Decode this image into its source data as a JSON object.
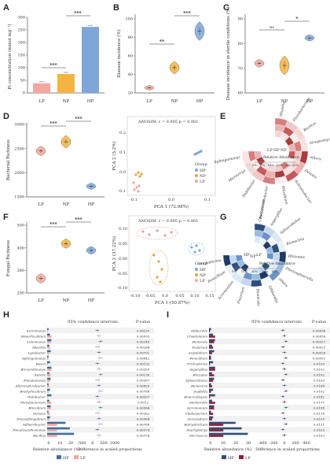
{
  "colors": {
    "LP": "#f2a7a0",
    "NP": "#f5b342",
    "HP": "#7ea6d8",
    "HP_dark": "#2f4f7a",
    "LP_dark": "#8a1e3a",
    "NP_scatter": "#e8a33d"
  },
  "panels": {
    "A": {
      "label": "A",
      "ylabel": "Pi concentration (mmol mg⁻¹)",
      "yticks": [
        "0",
        "50",
        "100",
        "150",
        "200",
        "250",
        "300"
      ],
      "categories": [
        "LP",
        "NP",
        "HP"
      ],
      "sig": [
        "***",
        "***"
      ]
    },
    "B": {
      "label": "B",
      "ylabel": "Disease incidence (%)",
      "yticks": [
        "20",
        "40",
        "60",
        "80",
        "100"
      ],
      "categories": [
        "LP",
        "NP",
        "HP"
      ],
      "sig": [
        "**",
        "***"
      ]
    },
    "C": {
      "label": "C",
      "ylabel": "Disease incidence in sterile conditions (%)",
      "yticks": [
        "60",
        "70",
        "80",
        "90"
      ],
      "categories": [
        "LP",
        "NP",
        "HP"
      ],
      "sig": [
        "ns",
        "*"
      ]
    },
    "D": {
      "label": "D",
      "ylabel": "Bacterial Richness",
      "yticks": [
        "1500",
        "2000",
        "2500",
        "3000"
      ],
      "categories": [
        "LP",
        "NP",
        "HP"
      ],
      "sig": [
        "***",
        "***"
      ]
    },
    "D2": {
      "anosim": "ANOSIM: r = 0.905 p = 0.001",
      "xlabel": "PCA 1 (72.98%)",
      "ylabel": "PCA 2 (5.2%)",
      "xticks": [
        "-0.1",
        "0.0",
        "0.1"
      ],
      "yticks": [
        "0.2",
        "0.1",
        "0.0",
        "-0.1"
      ],
      "legend_title": "Group",
      "legend": [
        "HP",
        "NP",
        "LP"
      ]
    },
    "E": {
      "label": "E",
      "taxa": [
        "Massilia",
        "Flavobacterium",
        "Bacillus",
        "Streptomyces",
        "others",
        "Devosia",
        "Achromobacter",
        "Rhizobium",
        "Pseudarthrobacter",
        "Pedobacter",
        "Microvirga",
        "Sphingomonas"
      ],
      "center": [
        "HP",
        "NP",
        "LP"
      ],
      "scale_label": "Relative Abundance",
      "scale_ticks": [
        "0%",
        "5%",
        "10%",
        "15%",
        "20%",
        "25%"
      ]
    },
    "F": {
      "label": "F",
      "ylabel": "Fungal Richness",
      "yticks": [
        "200",
        "300",
        "400",
        "500"
      ],
      "categories": [
        "LP",
        "NP",
        "HP"
      ],
      "sig": [
        "***",
        "***"
      ]
    },
    "F2": {
      "anosim": "ANOSIM: r = 0.995 p = 0.001",
      "xlabel": "PCA 1 (50.87%)",
      "ylabel": "PCA 2 (37.22%)",
      "xticks": [
        "-0.10",
        "-0.05",
        "0.0",
        "0.05",
        "0.10",
        "0.15"
      ],
      "yticks": [
        "0.10",
        "0.05",
        "0.00",
        "-0.05",
        "-0.10"
      ],
      "legend_title": "Group",
      "legend": [
        "HP",
        "NP",
        "LP"
      ]
    },
    "G": {
      "label": "G",
      "taxa": [
        "Chaetomium",
        "Aspergillus",
        "Sphaerobolus",
        "Bionectria",
        "Rhizopus",
        "Plectosphaerella",
        "others",
        "Gibberella",
        "Humicola",
        "Fusarium",
        "Acremonium",
        "Penicillium",
        "Trichoderma"
      ],
      "center": [
        "HP",
        "NP",
        "LP"
      ],
      "scale_label": "Relative Abundance",
      "scale_ticks": [
        "0%",
        "10%",
        "20%",
        "30%",
        "40%"
      ]
    },
    "H": {
      "label": "H",
      "ci_title": "95% confidence intervals",
      "pcol": "P-value",
      "taxa": [
        "Arenimonas",
        "Mesorhizobium",
        "Luteimonas",
        "Massilia",
        "Lysobacter",
        "Sphingomonas",
        "Bosea",
        "Brevundimonas",
        "Kaistia",
        "Pseudomonas",
        "Altererythrobacter",
        "Bradyrhizobium",
        "Pedobacter",
        "Flavobacterium",
        "Rhizobium",
        "Devosia",
        "Novosphingobium",
        "Adhaeribacter",
        "Pseudoxanthomonas",
        "Bacillus"
      ],
      "pvalues": [
        "0.00139",
        "0.00093",
        "0.00248",
        "0.00264",
        "0.00791",
        "0.00842",
        "0.00192",
        "0.00359",
        "0.00136",
        "0.00367",
        "0.00825",
        "0.00788",
        "0.00167",
        "0.0012",
        "0.00364",
        "0.00362",
        "0.00364",
        "0.00788",
        "0.00374",
        "0.00374"
      ],
      "xlabel1": "Relative abundance (%)",
      "xlabel2": "Difference in scaled proportions",
      "x1ticks": [
        "0",
        "10",
        "20"
      ],
      "x2ticks": [
        "-500",
        "0",
        "500",
        "1000"
      ],
      "legend": [
        "HP",
        "LP"
      ]
    },
    "I": {
      "label": "I",
      "ci_title": "95% confidence intervals",
      "pcol": "P-value",
      "taxa": [
        "Gibberella",
        "Chaetomium",
        "Humicola",
        "Fusarium",
        "Scytalidium",
        "Penicillium",
        "Trichoderma",
        "Aspergillus",
        "Rhizopus",
        "Sphaerobolus",
        "Bionectria",
        "Zopfiella",
        "Emericellopsis",
        "Mortierella",
        "Acremonium",
        "Cladosporium",
        "Sarocladium",
        "Botryotrichum",
        "Stachybotrys",
        "Microascus"
      ],
      "pvalues": [
        "0.00056",
        "0.00056",
        "0.00027",
        "0.00025",
        "0.00026",
        "0.00051",
        "0.0103",
        "0.0102",
        "0.0102",
        "0.0103",
        "0.0108",
        "0.0102",
        "0.0182",
        "0.0177",
        "0.0158",
        "0.0118",
        "0.0103",
        "0.0111",
        "0.0103",
        "0.0103"
      ],
      "xlabel1": "Relative abundance (%)",
      "xlabel2": "Difference in scaled proportions",
      "x1ticks": [
        "0",
        "10",
        "20",
        "30"
      ],
      "x2ticks": [
        "-400",
        "-200",
        "0",
        "200",
        "400"
      ],
      "legend": [
        "HP",
        "LP"
      ]
    }
  },
  "chart_data": [
    {
      "type": "bar",
      "panel": "A",
      "categories": [
        "LP",
        "NP",
        "HP"
      ],
      "values": [
        38,
        75,
        262
      ],
      "ylabel": "Pi concentration (mmol mg⁻¹)",
      "ylim": [
        0,
        300
      ]
    },
    {
      "type": "violin",
      "panel": "B",
      "categories": [
        "LP",
        "NP",
        "HP"
      ],
      "values": [
        21,
        44,
        86
      ],
      "ylabel": "Disease incidence (%)",
      "ylim": [
        15,
        100
      ]
    },
    {
      "type": "violin",
      "panel": "C",
      "categories": [
        "LP",
        "NP",
        "HP"
      ],
      "values": [
        69,
        68,
        81
      ],
      "ylabel": "Disease incidence in sterile conditions (%)",
      "ylim": [
        55,
        90
      ]
    },
    {
      "type": "violin",
      "panel": "D",
      "categories": [
        "LP",
        "NP",
        "HP"
      ],
      "values": [
        2450,
        2640,
        1720
      ],
      "ylabel": "Bacterial Richness",
      "ylim": [
        1500,
        3000
      ]
    },
    {
      "type": "violin",
      "panel": "F",
      "categories": [
        "LP",
        "NP",
        "HP"
      ],
      "values": [
        225,
        405,
        370
      ],
      "ylabel": "Fungal Richness",
      "ylim": [
        150,
        500
      ]
    }
  ]
}
